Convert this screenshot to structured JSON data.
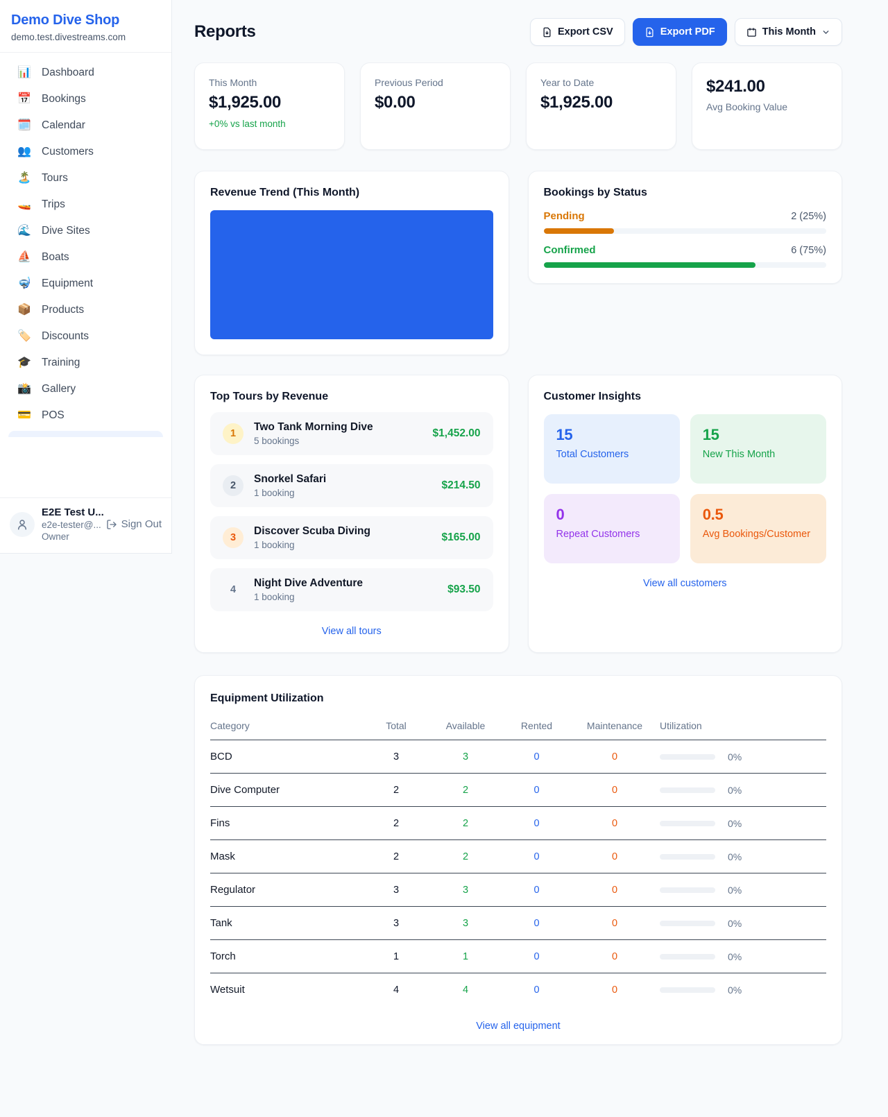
{
  "colors": {
    "accent_blue": "#2563eb",
    "success_green": "#16a34a",
    "pending_orange": "#d97706",
    "alert_orange": "#ea580c",
    "purple": "#9333ea"
  },
  "sidebar": {
    "brand": {
      "name": "Demo Dive Shop",
      "domain": "demo.test.divestreams.com"
    },
    "nav": [
      {
        "icon": "📊",
        "label": "Dashboard"
      },
      {
        "icon": "📅",
        "label": "Bookings"
      },
      {
        "icon": "🗓️",
        "label": "Calendar"
      },
      {
        "icon": "👥",
        "label": "Customers"
      },
      {
        "icon": "🏝️",
        "label": "Tours"
      },
      {
        "icon": "🚤",
        "label": "Trips"
      },
      {
        "icon": "🌊",
        "label": "Dive Sites"
      },
      {
        "icon": "⛵",
        "label": "Boats"
      },
      {
        "icon": "🤿",
        "label": "Equipment"
      },
      {
        "icon": "📦",
        "label": "Products"
      },
      {
        "icon": "🏷️",
        "label": "Discounts"
      },
      {
        "icon": "🎓",
        "label": "Training"
      },
      {
        "icon": "📸",
        "label": "Gallery"
      },
      {
        "icon": "💳",
        "label": "POS"
      }
    ],
    "user": {
      "name": "E2E Test U...",
      "email": "e2e-tester@...",
      "role": "Owner",
      "sign_out": "Sign Out"
    }
  },
  "header": {
    "title": "Reports",
    "export_csv": "Export CSV",
    "export_pdf": "Export PDF",
    "period": "This Month"
  },
  "stats": {
    "this_month": {
      "label": "This Month",
      "value": "$1,925.00",
      "delta": "+0% vs last month"
    },
    "previous_period": {
      "label": "Previous Period",
      "value": "$0.00"
    },
    "year_to_date": {
      "label": "Year to Date",
      "value": "$1,925.00"
    },
    "avg_booking": {
      "value": "$241.00",
      "label": "Avg Booking Value"
    }
  },
  "revenue_trend": {
    "title": "Revenue Trend (This Month)"
  },
  "bookings_by_status": {
    "title": "Bookings by Status",
    "rows": [
      {
        "label": "Pending",
        "value": "2 (25%)",
        "count": 2,
        "percent": 25
      },
      {
        "label": "Confirmed",
        "value": "6 (75%)",
        "count": 6,
        "percent": 75
      }
    ]
  },
  "top_tours": {
    "title": "Top Tours by Revenue",
    "rows": [
      {
        "rank": "1",
        "name": "Two Tank Morning Dive",
        "bookings": "5 bookings",
        "revenue": "$1,452.00"
      },
      {
        "rank": "2",
        "name": "Snorkel Safari",
        "bookings": "1 booking",
        "revenue": "$214.50"
      },
      {
        "rank": "3",
        "name": "Discover Scuba Diving",
        "bookings": "1 booking",
        "revenue": "$165.00"
      },
      {
        "rank": "4",
        "name": "Night Dive Adventure",
        "bookings": "1 booking",
        "revenue": "$93.50"
      }
    ],
    "view_all": "View all tours"
  },
  "customer_insights": {
    "title": "Customer Insights",
    "boxes": [
      {
        "value": "15",
        "label": "Total Customers"
      },
      {
        "value": "15",
        "label": "New This Month"
      },
      {
        "value": "0",
        "label": "Repeat Customers"
      },
      {
        "value": "0.5",
        "label": "Avg Bookings/Customer"
      }
    ],
    "view_all": "View all customers"
  },
  "equipment_utilization": {
    "title": "Equipment Utilization",
    "columns": [
      "Category",
      "Total",
      "Available",
      "Rented",
      "Maintenance",
      "Utilization"
    ],
    "rows": [
      {
        "category": "BCD",
        "total": "3",
        "available": "3",
        "rented": "0",
        "maintenance": "0",
        "utilization": "0%",
        "percent": 0
      },
      {
        "category": "Dive Computer",
        "total": "2",
        "available": "2",
        "rented": "0",
        "maintenance": "0",
        "utilization": "0%",
        "percent": 0
      },
      {
        "category": "Fins",
        "total": "2",
        "available": "2",
        "rented": "0",
        "maintenance": "0",
        "utilization": "0%",
        "percent": 0
      },
      {
        "category": "Mask",
        "total": "2",
        "available": "2",
        "rented": "0",
        "maintenance": "0",
        "utilization": "0%",
        "percent": 0
      },
      {
        "category": "Regulator",
        "total": "3",
        "available": "3",
        "rented": "0",
        "maintenance": "0",
        "utilization": "0%",
        "percent": 0
      },
      {
        "category": "Tank",
        "total": "3",
        "available": "3",
        "rented": "0",
        "maintenance": "0",
        "utilization": "0%",
        "percent": 0
      },
      {
        "category": "Torch",
        "total": "1",
        "available": "1",
        "rented": "0",
        "maintenance": "0",
        "utilization": "0%",
        "percent": 0
      },
      {
        "category": "Wetsuit",
        "total": "4",
        "available": "4",
        "rented": "0",
        "maintenance": "0",
        "utilization": "0%",
        "percent": 0
      }
    ],
    "view_all": "View all equipment"
  }
}
